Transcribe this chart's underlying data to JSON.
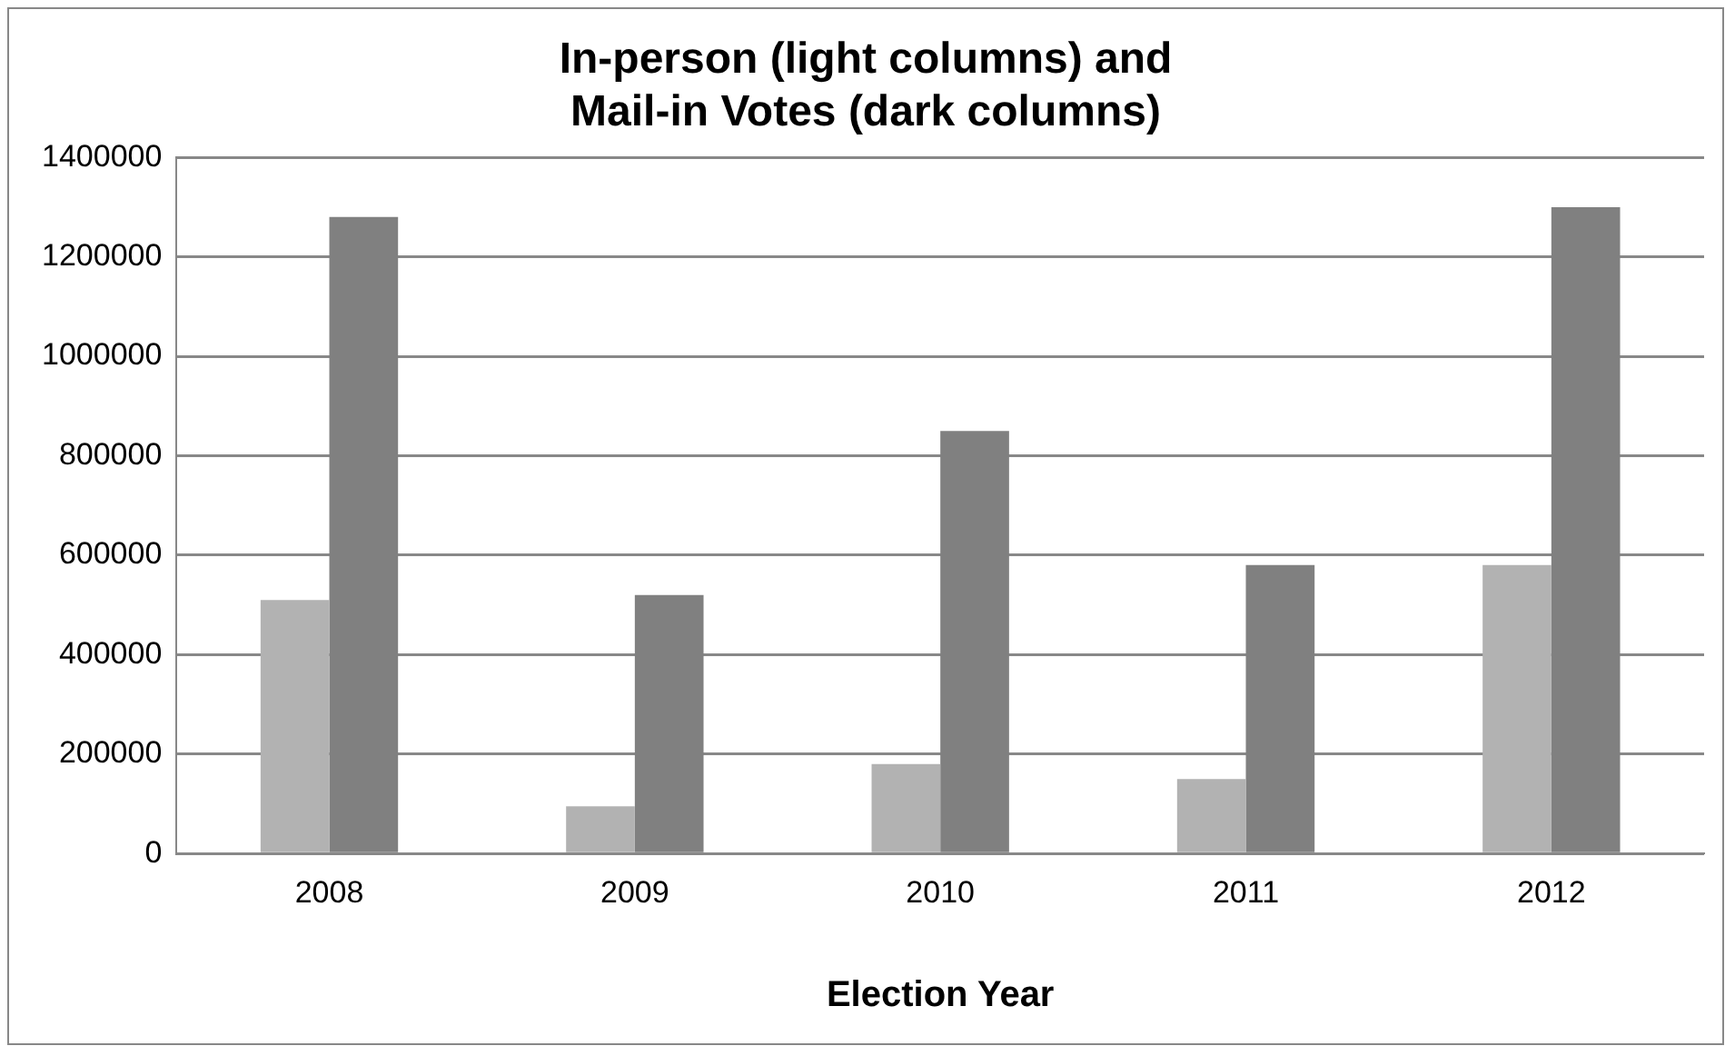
{
  "chart_data": {
    "type": "bar",
    "title": [
      "In-person (light columns) and",
      "Mail-in Votes (dark columns)"
    ],
    "xlabel": "Election Year",
    "categories": [
      "2008",
      "2009",
      "2010",
      "2011",
      "2012"
    ],
    "series": [
      {
        "color": "#b2b2b2",
        "values": [
          510000,
          95000,
          180000,
          150000,
          580000
        ]
      },
      {
        "color": "#808080",
        "values": [
          1280000,
          520000,
          850000,
          580000,
          1300000
        ]
      }
    ],
    "ylim": [
      0,
      1400000
    ],
    "yticks": [
      0,
      200000,
      400000,
      600000,
      800000,
      1000000,
      1200000,
      1400000
    ],
    "grid": "y",
    "legend": false
  }
}
